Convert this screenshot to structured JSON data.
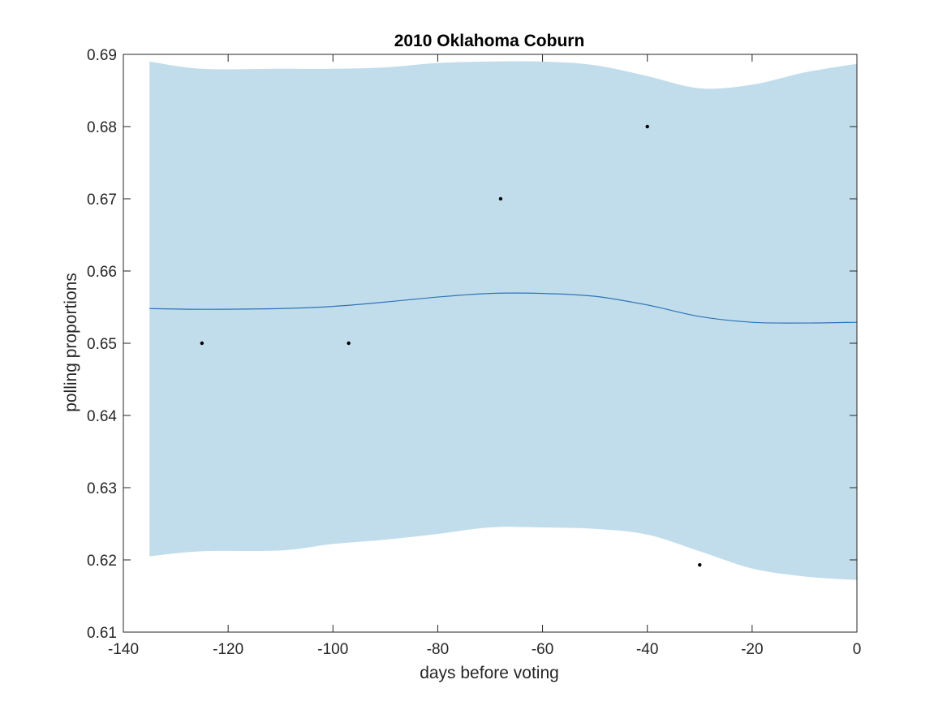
{
  "chart_data": {
    "type": "line",
    "title": "2010 Oklahoma Coburn",
    "xlabel": "days before voting",
    "ylabel": "polling proportions",
    "xlim": [
      -140,
      0
    ],
    "ylim": [
      0.61,
      0.69
    ],
    "xticks": [
      -140,
      -120,
      -100,
      -80,
      -60,
      -40,
      -20,
      0
    ],
    "yticks": [
      0.61,
      0.62,
      0.63,
      0.64,
      0.65,
      0.66,
      0.67,
      0.68,
      0.69
    ],
    "xtick_labels": [
      "-140",
      "-120",
      "-100",
      "-80",
      "-60",
      "-40",
      "-20",
      "0"
    ],
    "ytick_labels": [
      "0.61",
      "0.62",
      "0.63",
      "0.64",
      "0.65",
      "0.66",
      "0.67",
      "0.68",
      "0.69"
    ],
    "grid": false,
    "band": {
      "x": [
        -135,
        -125,
        -110,
        -100,
        -90,
        -80,
        -70,
        -60,
        -50,
        -40,
        -30,
        -20,
        -10,
        0
      ],
      "upper": [
        0.689,
        0.688,
        0.688,
        0.688,
        0.6882,
        0.6888,
        0.689,
        0.689,
        0.6885,
        0.687,
        0.6853,
        0.6858,
        0.6875,
        0.6887
      ],
      "lower": [
        0.6205,
        0.6212,
        0.6213,
        0.6222,
        0.6228,
        0.6236,
        0.6245,
        0.6245,
        0.6243,
        0.6235,
        0.6212,
        0.6188,
        0.6177,
        0.6172
      ]
    },
    "mean": {
      "x": [
        -135,
        -125,
        -110,
        -100,
        -90,
        -80,
        -70,
        -60,
        -50,
        -40,
        -30,
        -20,
        -10,
        0
      ],
      "y": [
        0.6548,
        0.6547,
        0.6548,
        0.6551,
        0.6557,
        0.6564,
        0.6569,
        0.6569,
        0.6565,
        0.6553,
        0.6537,
        0.6529,
        0.6528,
        0.6529
      ]
    },
    "points": {
      "x": [
        -125,
        -97,
        -68,
        -40,
        -30
      ],
      "y": [
        0.65,
        0.65,
        0.67,
        0.68,
        0.6193
      ]
    },
    "colors": {
      "band": "#c1ddeb",
      "mean": "#2e73b8",
      "points": "#000000",
      "axes": "#262626"
    }
  }
}
